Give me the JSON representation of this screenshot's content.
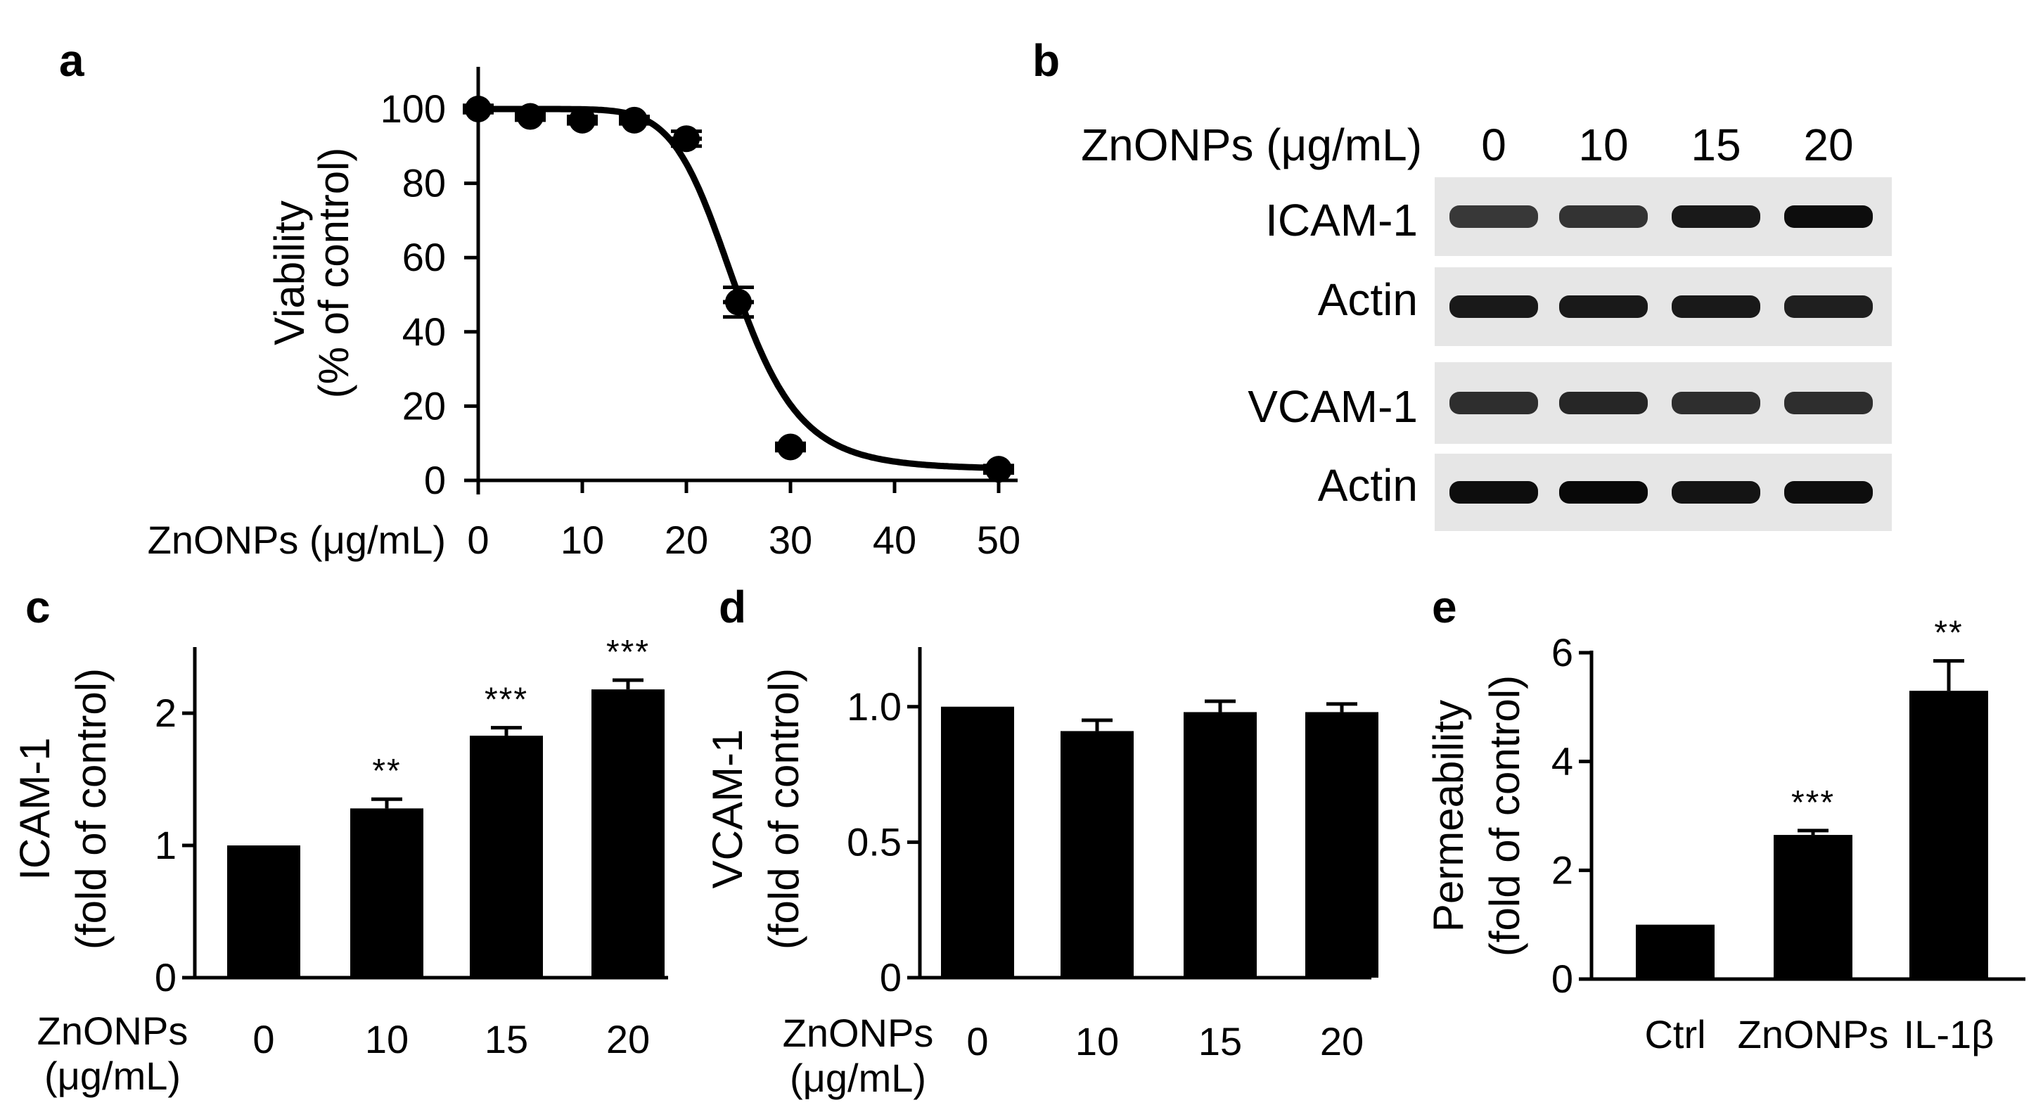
{
  "panel_labels": {
    "a": "a",
    "b": "b",
    "c": "c",
    "d": "d",
    "e": "e"
  },
  "chart_data": [
    {
      "panel": "a",
      "type": "line",
      "xlabel": "ZnONPs (μg/mL)",
      "ylabel": "Viability",
      "ylabel2": "(% of control)",
      "xlim": [
        0,
        50
      ],
      "ylim": [
        0,
        100
      ],
      "xticks": [
        0,
        10,
        20,
        30,
        40,
        50
      ],
      "yticks": [
        0,
        20,
        40,
        60,
        80,
        100
      ],
      "points": [
        {
          "x": 0,
          "y": 100,
          "err": 1
        },
        {
          "x": 5,
          "y": 98,
          "err": 1
        },
        {
          "x": 10,
          "y": 97,
          "err": 1
        },
        {
          "x": 15,
          "y": 97,
          "err": 1
        },
        {
          "x": 20,
          "y": 92,
          "err": 2
        },
        {
          "x": 25,
          "y": 48,
          "err": 4
        },
        {
          "x": 30,
          "y": 9,
          "err": 1
        },
        {
          "x": 50,
          "y": 3,
          "err": 1
        }
      ],
      "fit": {
        "model": "sigmoid",
        "ec50": 24.8,
        "hill": 8,
        "top": 100,
        "bottom": 3
      }
    },
    {
      "panel": "c",
      "type": "bar",
      "xlabel": "ZnONPs",
      "xlabel2": "(μg/mL)",
      "ylabel": "ICAM-1",
      "ylabel2": "(fold of control)",
      "categories": [
        "0",
        "10",
        "15",
        "20"
      ],
      "values": [
        1.0,
        1.28,
        1.83,
        2.18
      ],
      "errors": [
        0,
        0.07,
        0.06,
        0.07
      ],
      "significance": [
        "",
        "**",
        "***",
        "***"
      ],
      "ylim": [
        0,
        2.5
      ],
      "yticks": [
        0,
        1,
        2
      ]
    },
    {
      "panel": "d",
      "type": "bar",
      "xlabel": "ZnONPs",
      "xlabel2": "(μg/mL)",
      "ylabel": "VCAM-1",
      "ylabel2": "(fold of control)",
      "categories": [
        "0",
        "10",
        "15",
        "20"
      ],
      "values": [
        1.0,
        0.91,
        0.98,
        0.98
      ],
      "errors": [
        0,
        0.04,
        0.04,
        0.03
      ],
      "significance": [
        "",
        "",
        "",
        ""
      ],
      "ylim": [
        0,
        1.22
      ],
      "yticks": [
        0,
        0.5,
        1.0
      ],
      "ytick_labels": [
        "0",
        "0.5",
        "1.0"
      ]
    },
    {
      "panel": "e",
      "type": "bar",
      "ylabel": "Permeability",
      "ylabel2": "(fold of control)",
      "categories": [
        "Ctrl",
        "ZnONPs",
        "IL-1β"
      ],
      "values": [
        1.0,
        2.65,
        5.3
      ],
      "errors": [
        0,
        0.08,
        0.55
      ],
      "significance": [
        "",
        "***",
        "**"
      ],
      "ylim": [
        0,
        6
      ],
      "yticks": [
        0,
        2,
        4,
        6
      ]
    }
  ],
  "western_blot": {
    "header": "ZnONPs (μg/mL)",
    "lanes": [
      "0",
      "10",
      "15",
      "20"
    ],
    "rows": [
      {
        "label": "ICAM-1",
        "intensity": [
          0.78,
          0.8,
          0.9,
          0.95
        ]
      },
      {
        "label": "Actin",
        "intensity": [
          0.9,
          0.9,
          0.9,
          0.88
        ]
      },
      {
        "label": "VCAM-1",
        "intensity": [
          0.82,
          0.85,
          0.82,
          0.82
        ]
      },
      {
        "label": "Actin",
        "intensity": [
          0.95,
          0.97,
          0.92,
          0.95
        ]
      }
    ]
  }
}
